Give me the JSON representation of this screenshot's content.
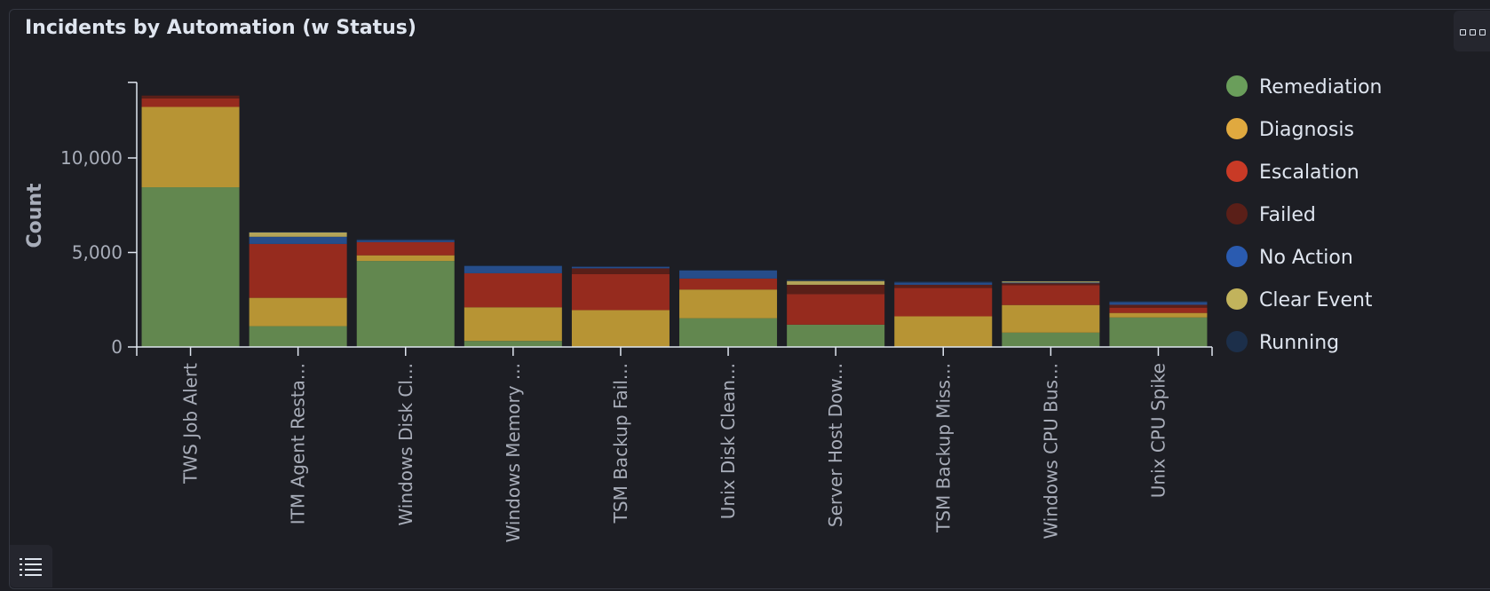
{
  "panel": {
    "title": "Incidents by Automation (w Status)"
  },
  "icons": {
    "menu": "panel-options-icon",
    "legend": "legend-list-icon"
  },
  "chart_data": {
    "type": "bar",
    "stacked": true,
    "title": "",
    "xlabel": "",
    "ylabel": "Count",
    "ylim": [
      0,
      14000
    ],
    "yticks": [
      0,
      5000,
      10000
    ],
    "ytick_labels": [
      "0",
      "5,000",
      "10,000"
    ],
    "grid": false,
    "legend_position": "right",
    "categories": [
      "TWS Job Alert",
      "ITM Agent Resta...",
      "Windows Disk Cl...",
      "Windows Memory ...",
      "TSM Backup Fail...",
      "Unix Disk Clean...",
      "Server Host Dow...",
      "TSM Backup Miss...",
      "Windows CPU Bus...",
      "Unix CPU Spike"
    ],
    "series": [
      {
        "name": "Remediation",
        "color": "#62874f",
        "values": [
          8450,
          1100,
          4550,
          320,
          0,
          1520,
          1180,
          0,
          760,
          1560
        ]
      },
      {
        "name": "Diagnosis",
        "color": "#b79434",
        "values": [
          4250,
          1500,
          300,
          1780,
          1950,
          1520,
          0,
          1620,
          1460,
          240
        ]
      },
      {
        "name": "Escalation",
        "color": "#962b1e",
        "values": [
          450,
          2850,
          700,
          1800,
          1900,
          580,
          1620,
          1500,
          1050,
          280
        ]
      },
      {
        "name": "Failed",
        "color": "#5a1f18",
        "values": [
          150,
          0,
          0,
          0,
          310,
          0,
          490,
          170,
          100,
          150
        ]
      },
      {
        "name": "No Action",
        "color": "#264d8a",
        "values": [
          0,
          380,
          100,
          380,
          80,
          420,
          0,
          120,
          40,
          150
        ]
      },
      {
        "name": "Clear Event",
        "color": "#b3a458",
        "values": [
          0,
          230,
          0,
          0,
          0,
          0,
          200,
          0,
          60,
          0
        ]
      },
      {
        "name": "Running",
        "color": "#1c2f4a",
        "values": [
          0,
          40,
          50,
          40,
          30,
          40,
          80,
          50,
          30,
          40
        ]
      }
    ],
    "legend_marker_colors": [
      "#6a9e5b",
      "#e0a93f",
      "#c93a26",
      "#5a1f18",
      "#2a5bb0",
      "#c2b35c",
      "#1c2f4a"
    ]
  }
}
